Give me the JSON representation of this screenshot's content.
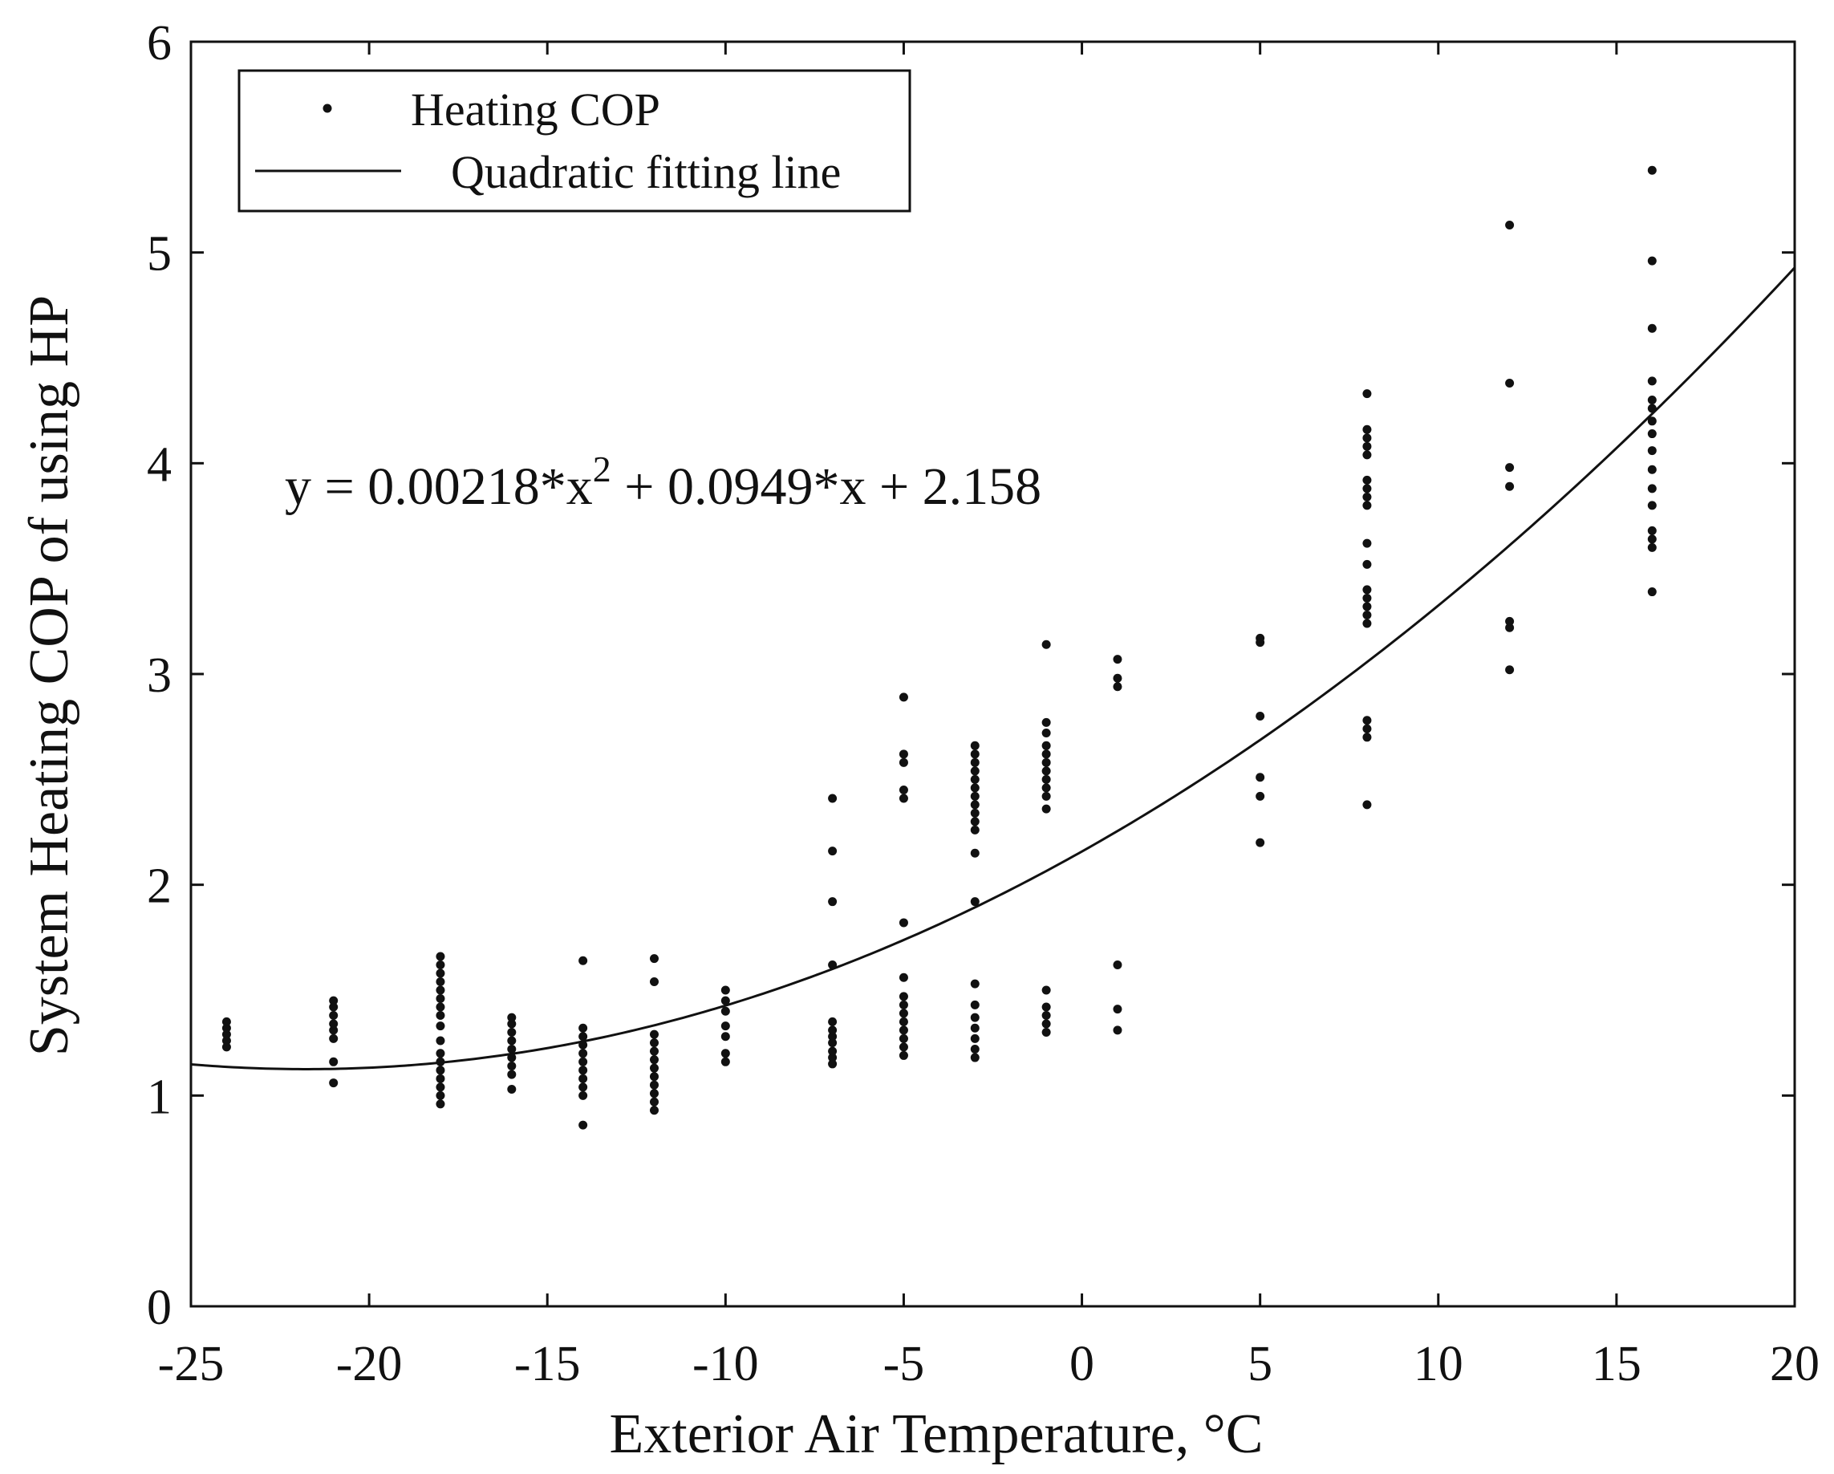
{
  "chart_data": {
    "type": "scatter",
    "title": "",
    "xlabel": "Exterior Air Temperature, °C",
    "ylabel": "System Heating COP of using HP",
    "xlim": [
      -25,
      20
    ],
    "ylim": [
      0,
      6
    ],
    "xticks": [
      -25,
      -20,
      -15,
      -10,
      -5,
      0,
      5,
      10,
      15,
      20
    ],
    "yticks": [
      0,
      1,
      2,
      3,
      4,
      5,
      6
    ],
    "grid": false,
    "legend_position": "top-left",
    "legend": {
      "scatter_label": "Heating COP",
      "line_label": "Quadratic fitting line"
    },
    "equation": {
      "prefix": "y = 0.00218*x",
      "superscript": "2",
      "suffix": " + 0.0949*x + 2.158"
    },
    "fit": {
      "a": 0.00218,
      "b": 0.0949,
      "c": 2.158
    },
    "series": [
      {
        "name": "Heating COP",
        "points": [
          [
            -24,
            1.23
          ],
          [
            -24,
            1.26
          ],
          [
            -24,
            1.29
          ],
          [
            -24,
            1.32
          ],
          [
            -24,
            1.35
          ],
          [
            -21,
            1.06
          ],
          [
            -21,
            1.16
          ],
          [
            -21,
            1.27
          ],
          [
            -21,
            1.31
          ],
          [
            -21,
            1.34
          ],
          [
            -21,
            1.38
          ],
          [
            -21,
            1.42
          ],
          [
            -21,
            1.45
          ],
          [
            -18,
            0.96
          ],
          [
            -18,
            1.0
          ],
          [
            -18,
            1.04
          ],
          [
            -18,
            1.08
          ],
          [
            -18,
            1.12
          ],
          [
            -18,
            1.16
          ],
          [
            -18,
            1.2
          ],
          [
            -18,
            1.26
          ],
          [
            -18,
            1.33
          ],
          [
            -18,
            1.38
          ],
          [
            -18,
            1.42
          ],
          [
            -18,
            1.46
          ],
          [
            -18,
            1.5
          ],
          [
            -18,
            1.54
          ],
          [
            -18,
            1.58
          ],
          [
            -18,
            1.62
          ],
          [
            -18,
            1.66
          ],
          [
            -16,
            1.03
          ],
          [
            -16,
            1.1
          ],
          [
            -16,
            1.14
          ],
          [
            -16,
            1.18
          ],
          [
            -16,
            1.22
          ],
          [
            -16,
            1.26
          ],
          [
            -16,
            1.3
          ],
          [
            -16,
            1.34
          ],
          [
            -16,
            1.37
          ],
          [
            -14,
            0.86
          ],
          [
            -14,
            1.0
          ],
          [
            -14,
            1.04
          ],
          [
            -14,
            1.08
          ],
          [
            -14,
            1.12
          ],
          [
            -14,
            1.16
          ],
          [
            -14,
            1.2
          ],
          [
            -14,
            1.24
          ],
          [
            -14,
            1.28
          ],
          [
            -14,
            1.32
          ],
          [
            -14,
            1.64
          ],
          [
            -12,
            0.93
          ],
          [
            -12,
            0.97
          ],
          [
            -12,
            1.01
          ],
          [
            -12,
            1.05
          ],
          [
            -12,
            1.09
          ],
          [
            -12,
            1.13
          ],
          [
            -12,
            1.17
          ],
          [
            -12,
            1.21
          ],
          [
            -12,
            1.25
          ],
          [
            -12,
            1.29
          ],
          [
            -12,
            1.54
          ],
          [
            -12,
            1.65
          ],
          [
            -10,
            1.16
          ],
          [
            -10,
            1.2
          ],
          [
            -10,
            1.28
          ],
          [
            -10,
            1.33
          ],
          [
            -10,
            1.4
          ],
          [
            -10,
            1.45
          ],
          [
            -10,
            1.5
          ],
          [
            -7,
            1.15
          ],
          [
            -7,
            1.18
          ],
          [
            -7,
            1.21
          ],
          [
            -7,
            1.25
          ],
          [
            -7,
            1.28
          ],
          [
            -7,
            1.31
          ],
          [
            -7,
            1.35
          ],
          [
            -7,
            1.62
          ],
          [
            -7,
            1.92
          ],
          [
            -7,
            2.16
          ],
          [
            -7,
            2.41
          ],
          [
            -5,
            1.19
          ],
          [
            -5,
            1.23
          ],
          [
            -5,
            1.27
          ],
          [
            -5,
            1.31
          ],
          [
            -5,
            1.35
          ],
          [
            -5,
            1.39
          ],
          [
            -5,
            1.43
          ],
          [
            -5,
            1.47
          ],
          [
            -5,
            1.56
          ],
          [
            -5,
            1.82
          ],
          [
            -5,
            2.41
          ],
          [
            -5,
            2.45
          ],
          [
            -5,
            2.58
          ],
          [
            -5,
            2.62
          ],
          [
            -5,
            2.89
          ],
          [
            -3,
            1.18
          ],
          [
            -3,
            1.22
          ],
          [
            -3,
            1.27
          ],
          [
            -3,
            1.32
          ],
          [
            -3,
            1.37
          ],
          [
            -3,
            1.43
          ],
          [
            -3,
            1.53
          ],
          [
            -3,
            1.92
          ],
          [
            -3,
            2.15
          ],
          [
            -3,
            2.26
          ],
          [
            -3,
            2.3
          ],
          [
            -3,
            2.34
          ],
          [
            -3,
            2.38
          ],
          [
            -3,
            2.42
          ],
          [
            -3,
            2.46
          ],
          [
            -3,
            2.5
          ],
          [
            -3,
            2.54
          ],
          [
            -3,
            2.58
          ],
          [
            -3,
            2.62
          ],
          [
            -3,
            2.66
          ],
          [
            -1,
            1.3
          ],
          [
            -1,
            1.34
          ],
          [
            -1,
            1.38
          ],
          [
            -1,
            1.42
          ],
          [
            -1,
            1.5
          ],
          [
            -1,
            2.36
          ],
          [
            -1,
            2.42
          ],
          [
            -1,
            2.46
          ],
          [
            -1,
            2.5
          ],
          [
            -1,
            2.54
          ],
          [
            -1,
            2.58
          ],
          [
            -1,
            2.62
          ],
          [
            -1,
            2.66
          ],
          [
            -1,
            2.72
          ],
          [
            -1,
            2.77
          ],
          [
            -1,
            3.14
          ],
          [
            1,
            1.31
          ],
          [
            1,
            1.41
          ],
          [
            1,
            1.62
          ],
          [
            1,
            2.94
          ],
          [
            1,
            2.98
          ],
          [
            1,
            3.07
          ],
          [
            5,
            2.2
          ],
          [
            5,
            2.42
          ],
          [
            5,
            2.51
          ],
          [
            5,
            2.8
          ],
          [
            5,
            3.15
          ],
          [
            5,
            3.17
          ],
          [
            8,
            2.38
          ],
          [
            8,
            2.7
          ],
          [
            8,
            2.74
          ],
          [
            8,
            2.78
          ],
          [
            8,
            3.24
          ],
          [
            8,
            3.28
          ],
          [
            8,
            3.32
          ],
          [
            8,
            3.36
          ],
          [
            8,
            3.4
          ],
          [
            8,
            3.52
          ],
          [
            8,
            3.62
          ],
          [
            8,
            3.8
          ],
          [
            8,
            3.84
          ],
          [
            8,
            3.88
          ],
          [
            8,
            3.92
          ],
          [
            8,
            4.04
          ],
          [
            8,
            4.08
          ],
          [
            8,
            4.12
          ],
          [
            8,
            4.16
          ],
          [
            8,
            4.33
          ],
          [
            12,
            3.02
          ],
          [
            12,
            3.22
          ],
          [
            12,
            3.25
          ],
          [
            12,
            3.89
          ],
          [
            12,
            3.98
          ],
          [
            12,
            4.38
          ],
          [
            12,
            5.13
          ],
          [
            16,
            3.39
          ],
          [
            16,
            3.6
          ],
          [
            16,
            3.64
          ],
          [
            16,
            3.68
          ],
          [
            16,
            3.8
          ],
          [
            16,
            3.88
          ],
          [
            16,
            3.97
          ],
          [
            16,
            4.06
          ],
          [
            16,
            4.14
          ],
          [
            16,
            4.2
          ],
          [
            16,
            4.26
          ],
          [
            16,
            4.3
          ],
          [
            16,
            4.39
          ],
          [
            16,
            4.64
          ],
          [
            16,
            4.96
          ],
          [
            16,
            5.39
          ]
        ]
      },
      {
        "name": "Quadratic fitting line",
        "type": "line",
        "function": "0.00218*x^2 + 0.0949*x + 2.158",
        "x_range": [
          -25,
          20
        ]
      }
    ]
  }
}
